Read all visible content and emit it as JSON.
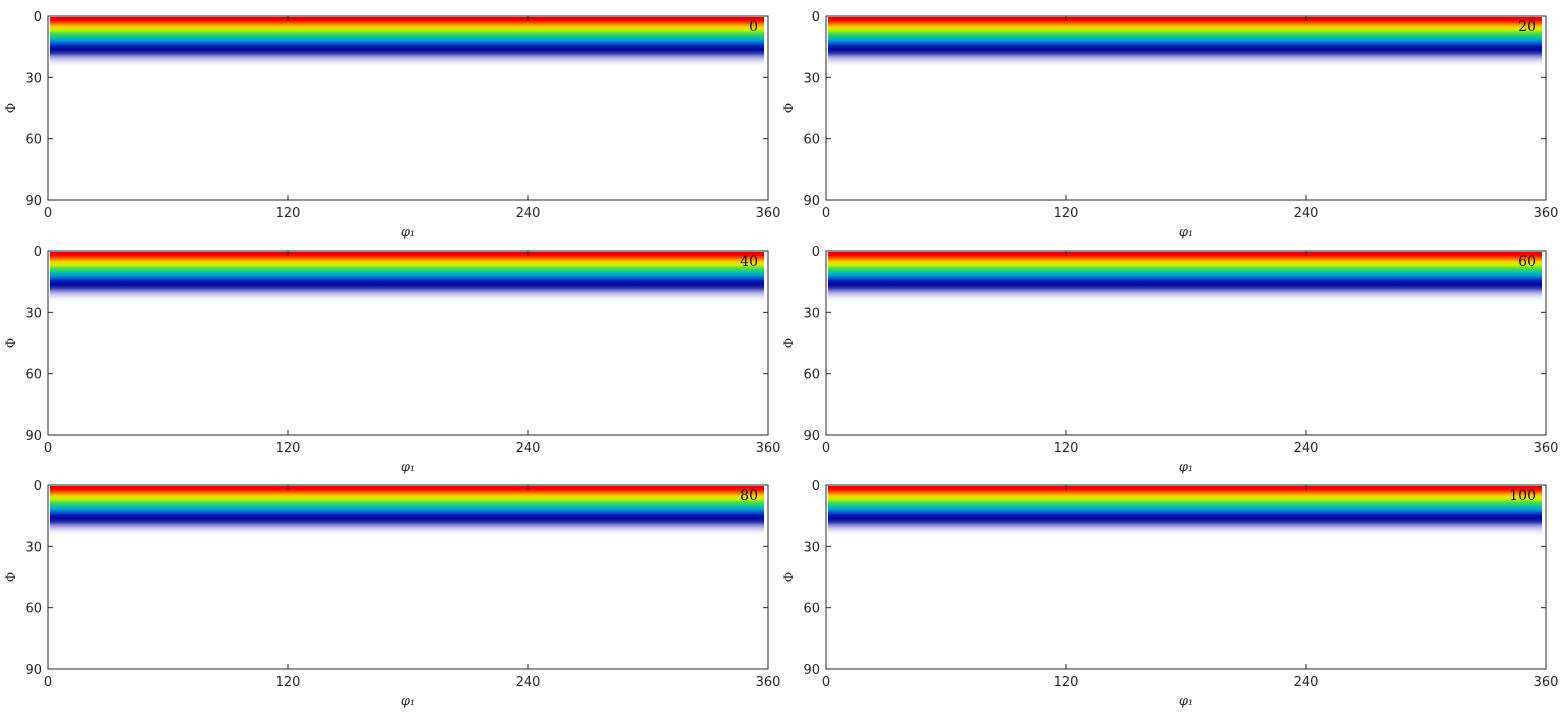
{
  "chart_data": [
    {
      "type": "heatmap",
      "panel_label": "0",
      "xlabel": "φ₁",
      "ylabel": "Φ",
      "xlim": [
        0,
        360
      ],
      "ylim": [
        90,
        0
      ],
      "xticks": [
        "0",
        "120",
        "240",
        "360"
      ],
      "yticks": [
        "0",
        "30",
        "60",
        "90"
      ],
      "colormap": "jet",
      "data_extent_phi": [
        0,
        24
      ],
      "profile": "intensity varies only with Φ: red at Φ≈0, through yellow/green/cyan to dark blue at Φ≈15, fading to white by Φ≈24"
    },
    {
      "type": "heatmap",
      "panel_label": "20",
      "xlabel": "φ₁",
      "ylabel": "Φ",
      "xlim": [
        0,
        360
      ],
      "ylim": [
        90,
        0
      ],
      "xticks": [
        "0",
        "120",
        "240",
        "360"
      ],
      "yticks": [
        "0",
        "30",
        "60",
        "90"
      ],
      "colormap": "jet",
      "data_extent_phi": [
        0,
        24
      ]
    },
    {
      "type": "heatmap",
      "panel_label": "40",
      "xlabel": "φ₁",
      "ylabel": "Φ",
      "xlim": [
        0,
        360
      ],
      "ylim": [
        90,
        0
      ],
      "xticks": [
        "0",
        "120",
        "240",
        "360"
      ],
      "yticks": [
        "0",
        "30",
        "60",
        "90"
      ],
      "colormap": "jet",
      "data_extent_phi": [
        0,
        24
      ]
    },
    {
      "type": "heatmap",
      "panel_label": "60",
      "xlabel": "φ₁",
      "ylabel": "Φ",
      "xlim": [
        0,
        360
      ],
      "ylim": [
        90,
        0
      ],
      "xticks": [
        "0",
        "120",
        "240",
        "360"
      ],
      "yticks": [
        "0",
        "30",
        "60",
        "90"
      ],
      "colormap": "jet",
      "data_extent_phi": [
        0,
        24
      ]
    },
    {
      "type": "heatmap",
      "panel_label": "80",
      "xlabel": "φ₁",
      "ylabel": "Φ",
      "xlim": [
        0,
        360
      ],
      "ylim": [
        90,
        0
      ],
      "xticks": [
        "0",
        "120",
        "240",
        "360"
      ],
      "yticks": [
        "0",
        "30",
        "60",
        "90"
      ],
      "colormap": "jet",
      "data_extent_phi": [
        0,
        24
      ]
    },
    {
      "type": "heatmap",
      "panel_label": "100",
      "xlabel": "φ₁",
      "ylabel": "Φ",
      "xlim": [
        0,
        360
      ],
      "ylim": [
        90,
        0
      ],
      "xticks": [
        "0",
        "120",
        "240",
        "360"
      ],
      "yticks": [
        "0",
        "30",
        "60",
        "90"
      ],
      "colormap": "jet",
      "data_extent_phi": [
        0,
        24
      ]
    }
  ],
  "colors": {
    "axis": "#262626",
    "background": "#ffffff",
    "gradient": [
      "#cc0000",
      "#ff0000",
      "#ff6a00",
      "#ffd000",
      "#c8f000",
      "#5adc3c",
      "#14c88c",
      "#00a8c8",
      "#0060d0",
      "#0018b0",
      "#000a9a",
      "#2a30b0",
      "#8a8ed8",
      "#c8caee",
      "#ebecf9",
      "#ffffff"
    ]
  }
}
